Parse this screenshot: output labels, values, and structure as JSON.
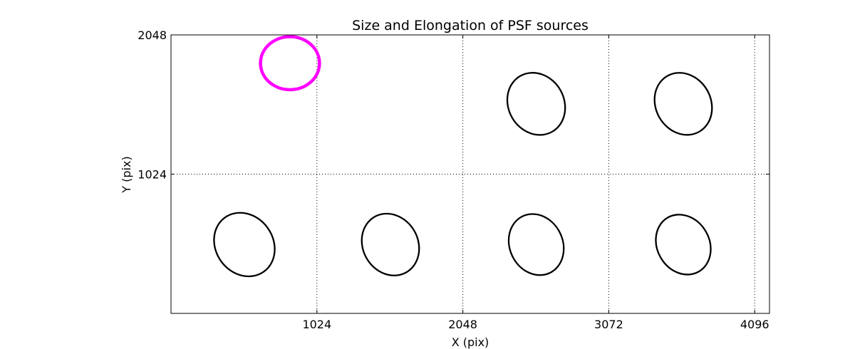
{
  "chart_data": {
    "type": "scatter",
    "title": "Size and Elongation of PSF sources",
    "xlabel": "X (pix)",
    "ylabel": "Y (pix)",
    "xlim": [
      0,
      4200
    ],
    "ylim": [
      0,
      2048
    ],
    "xticks": [
      1024,
      2048,
      3072,
      4096
    ],
    "xtick_labels": [
      "1024",
      "2048",
      "3072",
      "4096"
    ],
    "yticks": [
      1024,
      2048
    ],
    "ytick_labels": [
      "1024",
      "2048"
    ],
    "grid": true,
    "ellipses": [
      {
        "x": 835,
        "y": 1840,
        "rx": 207,
        "ry": 195,
        "angle": 0,
        "color": "#ff00ff",
        "width": 4.5
      },
      {
        "x": 2563,
        "y": 1541,
        "rx": 195,
        "ry": 236,
        "angle": -30,
        "color": "#000000",
        "width": 2.3
      },
      {
        "x": 3595,
        "y": 1541,
        "rx": 193,
        "ry": 236,
        "angle": -30,
        "color": "#000000",
        "width": 2.3
      },
      {
        "x": 515,
        "y": 506,
        "rx": 201,
        "ry": 245,
        "angle": -36,
        "color": "#000000",
        "width": 2.3
      },
      {
        "x": 1540,
        "y": 506,
        "rx": 193,
        "ry": 235,
        "angle": -30,
        "color": "#000000",
        "width": 2.3
      },
      {
        "x": 2563,
        "y": 506,
        "rx": 186,
        "ry": 231,
        "angle": -26,
        "color": "#000000",
        "width": 2.3
      },
      {
        "x": 3595,
        "y": 506,
        "rx": 183,
        "ry": 229,
        "angle": -30,
        "color": "#000000",
        "width": 2.3
      }
    ]
  }
}
